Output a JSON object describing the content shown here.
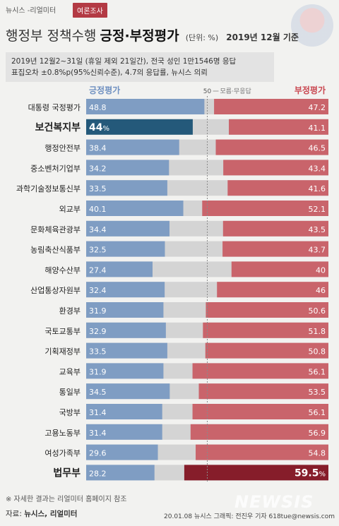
{
  "header": {
    "brand": "뉴시스 -리얼미터",
    "badge": "여론조사",
    "title_normal": "행정부 정책수행",
    "title_bold": "긍정·부정평가",
    "unit": "(단위: %)",
    "base_date": "2019년 12월 기준"
  },
  "survey_note": {
    "line1": "2019년 12월2~31일 (휴일 제외 21일간), 전국 성인 1만1546명 응답",
    "line2": "표집오차 ±0.8%p(95%신뢰수준), 4.7의 응답률, 뉴시스 의뢰"
  },
  "footer": {
    "footnote": "※ 자세한 결과는 리얼미터 홈페이지 참조",
    "source_label": "자료:",
    "source_value": "뉴시스, 리얼미터",
    "credit": "20.01.08 뉴시스 그래픽: 전진우 기자 618tue@newsis.com",
    "watermark": "NEWSIS"
  },
  "colors": {
    "positive": "#7f9dc3",
    "negative": "#c9646b",
    "neutral": "#d4d4d4",
    "positive_highlight": "#24597a",
    "negative_highlight": "#861d2a",
    "positive_text": "#6d8fc0",
    "negative_text": "#c9464f"
  },
  "chart_data": {
    "type": "bar",
    "stacked": true,
    "orientation": "horizontal",
    "xlim": [
      0,
      100
    ],
    "reference_value": 50,
    "reference_label": "50",
    "legend": {
      "positive": "긍정평가",
      "neutral": "모름·무응답",
      "negative": "부정평가"
    },
    "categories": [
      "대통령 국정평가",
      "보건복지부",
      "행정안전부",
      "중소벤처기업부",
      "과학기술정보통신부",
      "외교부",
      "문화체육관광부",
      "농림축산식품부",
      "해양수산부",
      "산업통상자원부",
      "환경부",
      "국토교통부",
      "기획재정부",
      "교육부",
      "통일부",
      "국방부",
      "고용노동부",
      "여성가족부",
      "법무부"
    ],
    "highlighted": [
      "보건복지부",
      "법무부"
    ],
    "series": [
      {
        "name": "긍정평가",
        "values": [
          48.8,
          44,
          38.4,
          34.2,
          33.5,
          40.1,
          34.4,
          32.5,
          27.4,
          32.4,
          31.9,
          32.9,
          33.5,
          31.9,
          34.5,
          31.4,
          31.4,
          29.6,
          28.2
        ]
      },
      {
        "name": "부정평가",
        "values": [
          47.2,
          41.1,
          46.5,
          43.4,
          41.6,
          52.1,
          43.5,
          43.7,
          40,
          46,
          50.6,
          51.8,
          50.8,
          56.1,
          53.5,
          56.1,
          56.9,
          54.8,
          59.5
        ]
      }
    ],
    "value_labels": {
      "positive": [
        "48.8",
        "44",
        "38.4",
        "34.2",
        "33.5",
        "40.1",
        "34.4",
        "32.5",
        "27.4",
        "32.4",
        "31.9",
        "32.9",
        "33.5",
        "31.9",
        "34.5",
        "31.4",
        "31.4",
        "29.6",
        "28.2"
      ],
      "negative": [
        "47.2",
        "41.1",
        "46.5",
        "43.4",
        "41.6",
        "52.1",
        "43.5",
        "43.7",
        "40",
        "46",
        "50.6",
        "51.8",
        "50.8",
        "56.1",
        "53.5",
        "56.1",
        "56.9",
        "54.8",
        "59.5"
      ],
      "percent_suffix": "%"
    }
  }
}
